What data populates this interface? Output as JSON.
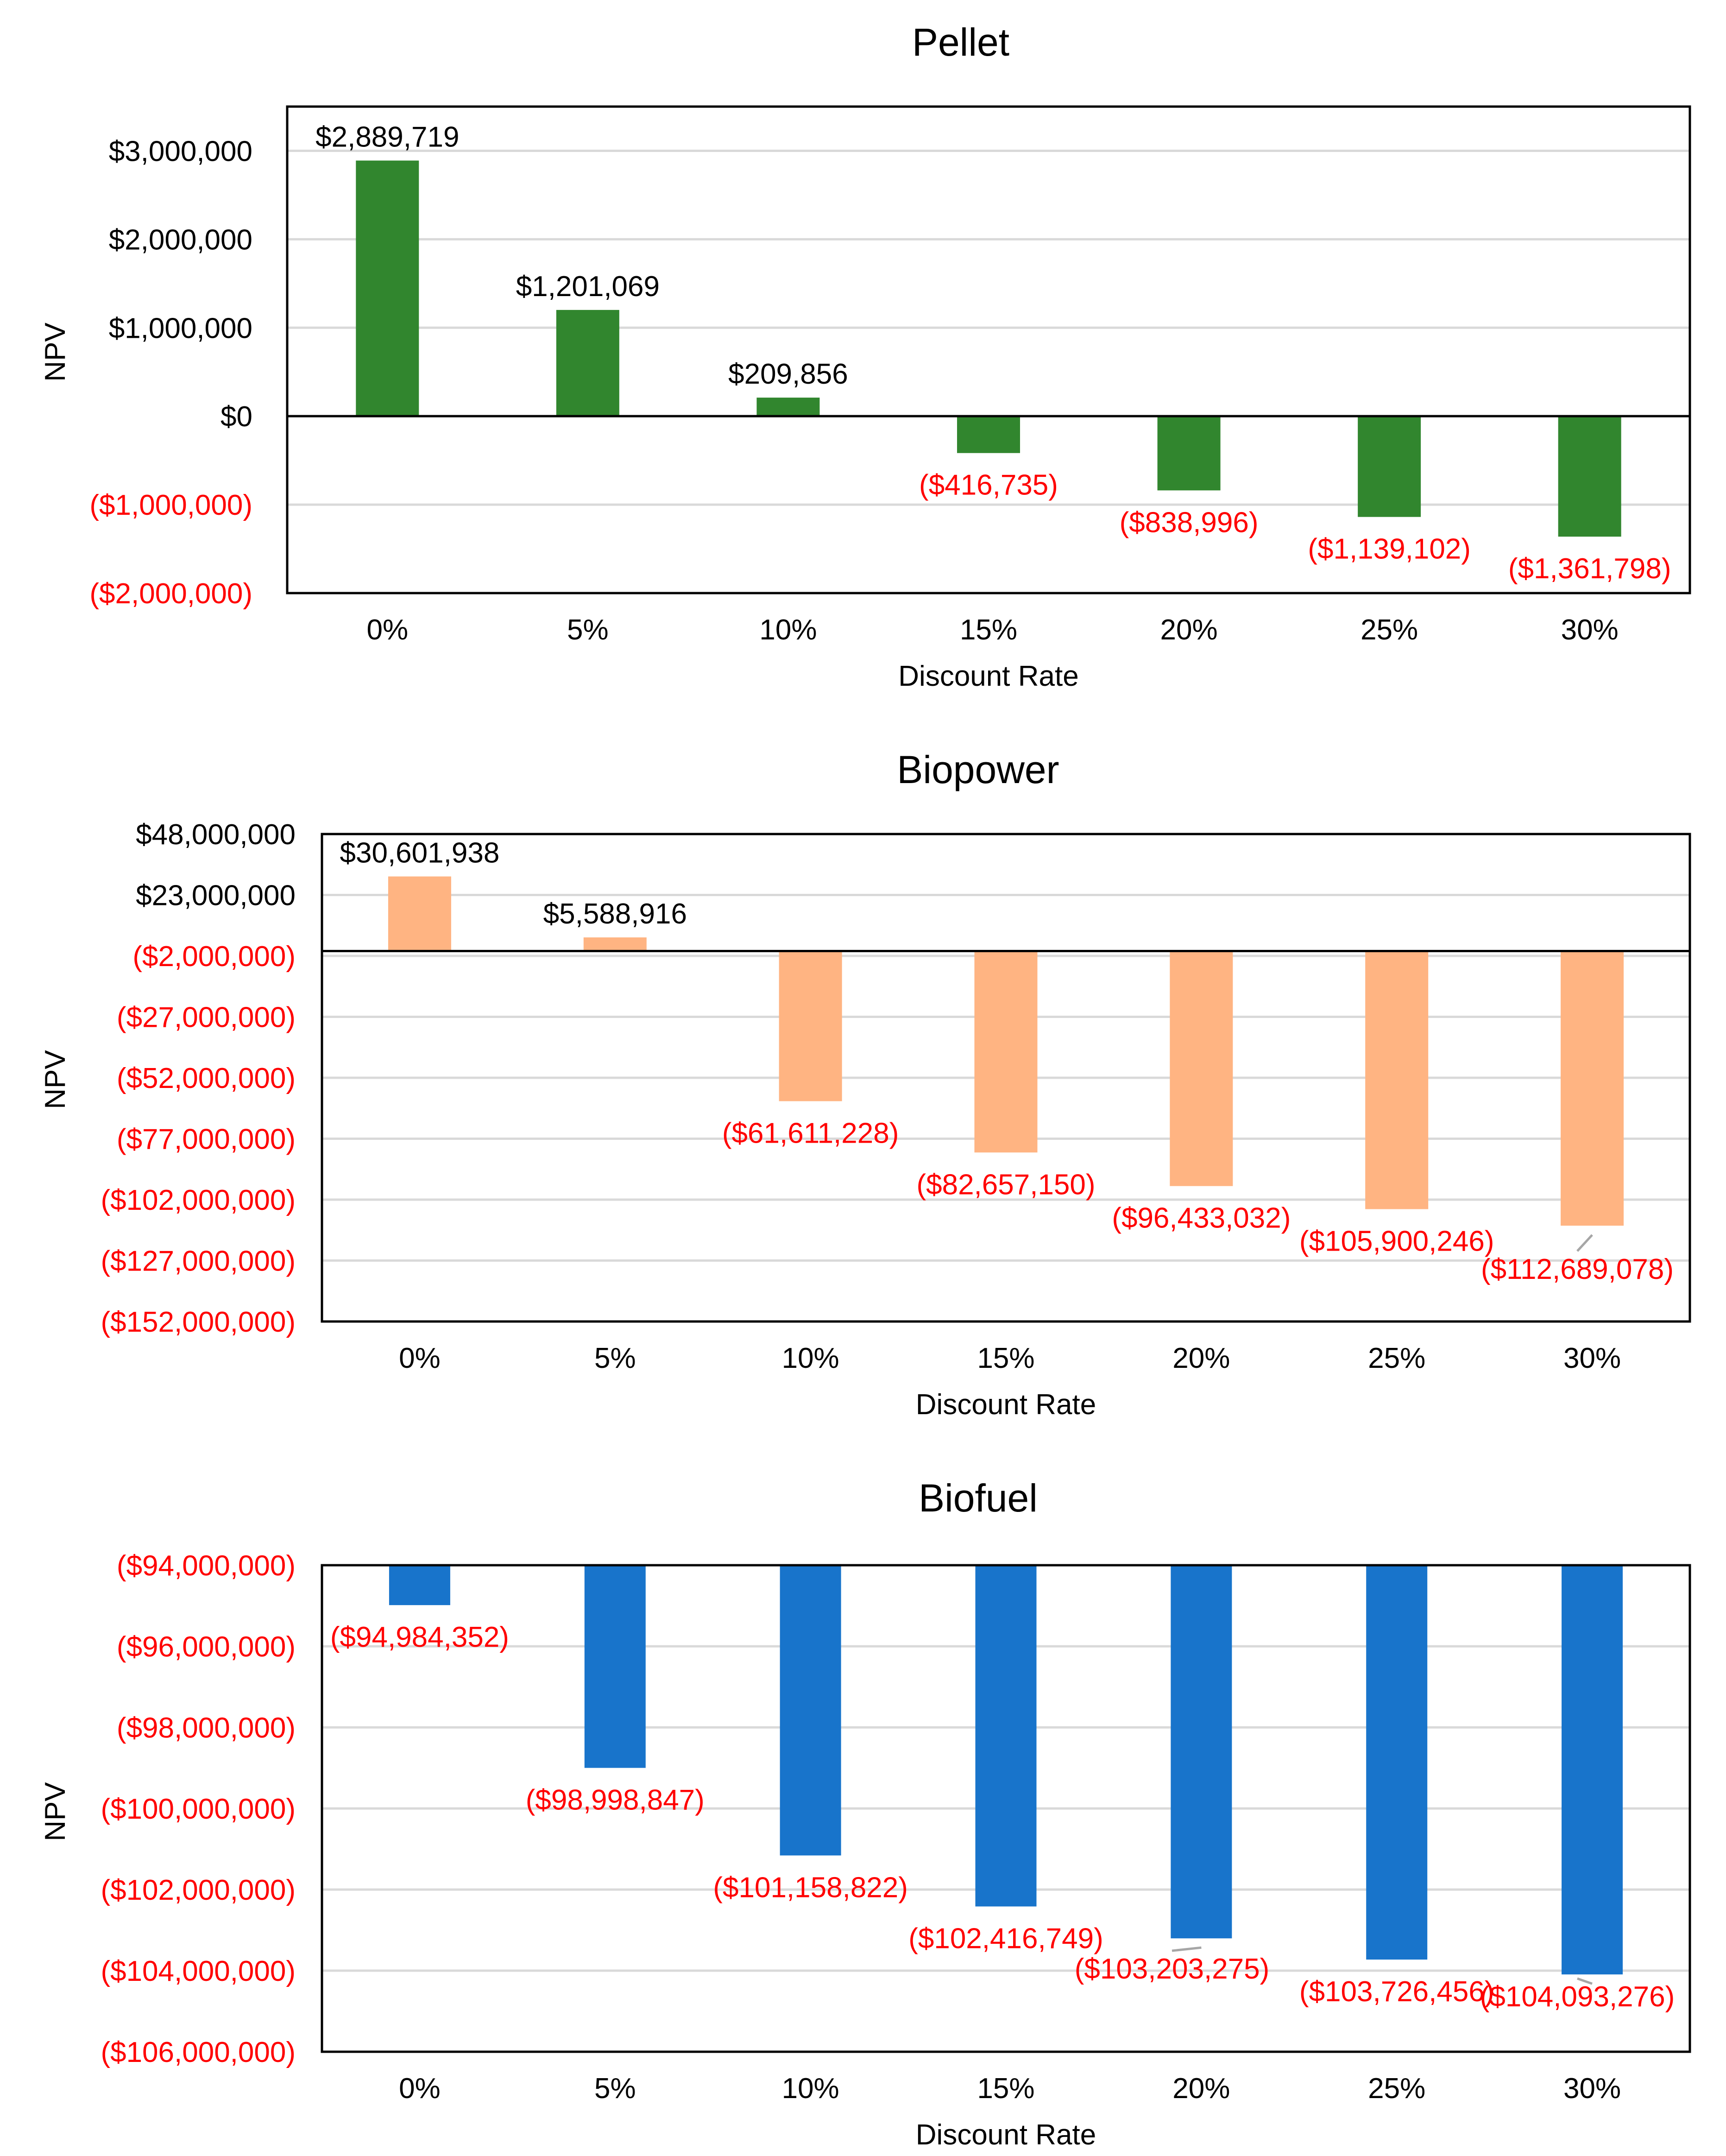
{
  "colors": {
    "pellet": "#31862E",
    "biopower": "#FFB482",
    "biofuel": "#1874CB",
    "negative_text": "#FF0000",
    "positive_text": "#000000",
    "gridline": "#D9D9D9",
    "frame": "#000000"
  },
  "chart_data": [
    {
      "type": "bar",
      "title": "Pellet",
      "xlabel": "Discount Rate",
      "ylabel": "NPV",
      "categories": [
        "0%",
        "5%",
        "10%",
        "15%",
        "20%",
        "25%",
        "30%"
      ],
      "values": [
        2889719,
        1201069,
        209856,
        -416735,
        -838996,
        -1139102,
        -1361798
      ],
      "value_labels": [
        "$2,889,719",
        "$1,201,069",
        "$209,856",
        "($416,735)",
        "($838,996)",
        "($1,139,102)",
        "($1,361,798)"
      ],
      "ylim": [
        -2000000,
        3500000
      ],
      "ytick_values": [
        3000000,
        2000000,
        1000000,
        0,
        -1000000,
        -2000000
      ],
      "ytick_labels": [
        "$3,000,000",
        "$2,000,000",
        "$1,000,000",
        "$0",
        "($1,000,000)",
        "($2,000,000)"
      ],
      "grid": true,
      "zero_line": true
    },
    {
      "type": "bar",
      "title": "Biopower",
      "xlabel": "Discount Rate",
      "ylabel": "NPV",
      "categories": [
        "0%",
        "5%",
        "10%",
        "15%",
        "20%",
        "25%",
        "30%"
      ],
      "values": [
        30601938,
        5588916,
        -61611228,
        -82657150,
        -96433032,
        -105900246,
        -112689078
      ],
      "value_labels": [
        "$30,601,938",
        "$5,588,916",
        "($61,611,228)",
        "($82,657,150)",
        "($96,433,032)",
        "($105,900,246)",
        "($112,689,078)"
      ],
      "ylim": [
        -152000000,
        48000000
      ],
      "ytick_values": [
        48000000,
        23000000,
        -2000000,
        -27000000,
        -52000000,
        -77000000,
        -102000000,
        -127000000,
        -152000000
      ],
      "ytick_labels": [
        "$48,000,000",
        "$23,000,000",
        "($2,000,000)",
        "($27,000,000)",
        "($52,000,000)",
        "($77,000,000)",
        "($102,000,000)",
        "($127,000,000)",
        "($152,000,000)"
      ],
      "grid": true,
      "zero_line": true
    },
    {
      "type": "bar",
      "title": "Biofuel",
      "xlabel": "Discount Rate",
      "ylabel": "NPV",
      "categories": [
        "0%",
        "5%",
        "10%",
        "15%",
        "20%",
        "25%",
        "30%"
      ],
      "values": [
        -94984352,
        -98998847,
        -101158822,
        -102416749,
        -103203275,
        -103726456,
        -104093276
      ],
      "value_labels": [
        "($94,984,352)",
        "($98,998,847)",
        "($101,158,822)",
        "($102,416,749)",
        "($103,203,275)",
        "($103,726,456)",
        "($104,093,276)"
      ],
      "ylim": [
        -106000000,
        -94000000
      ],
      "ytick_values": [
        -94000000,
        -96000000,
        -98000000,
        -100000000,
        -102000000,
        -104000000,
        -106000000
      ],
      "ytick_labels": [
        "($94,000,000)",
        "($96,000,000)",
        "($98,000,000)",
        "($100,000,000)",
        "($102,000,000)",
        "($104,000,000)",
        "($106,000,000)"
      ],
      "grid": true,
      "zero_line": false
    }
  ]
}
